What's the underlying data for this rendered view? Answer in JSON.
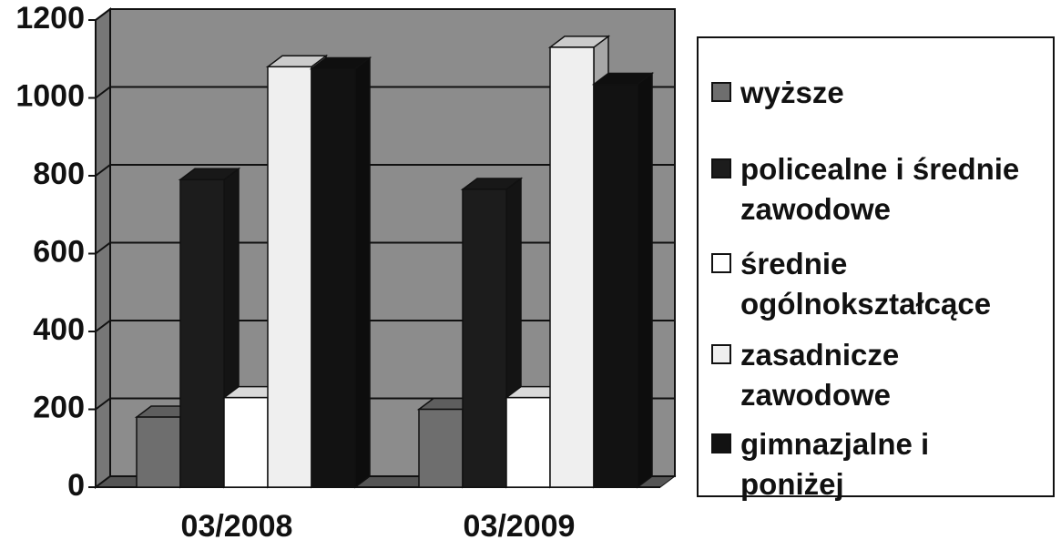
{
  "chart_data": {
    "type": "bar3d",
    "categories": [
      "03/2008",
      "03/2009"
    ],
    "series": [
      {
        "name": "wyższe",
        "color": "#6e6e6e",
        "values": [
          180,
          200
        ]
      },
      {
        "name": "policealne i średnie zawodowe",
        "color": "#1c1c1c",
        "values": [
          790,
          765
        ]
      },
      {
        "name": "średnie ogólnokształcące",
        "color": "#ffffff",
        "values": [
          230,
          230
        ]
      },
      {
        "name": "zasadnicze zawodowe",
        "color": "#efefef",
        "values": [
          1080,
          1130
        ]
      },
      {
        "name": "gimnazjalne i poniżej",
        "color": "#121212",
        "values": [
          1075,
          1035
        ]
      }
    ],
    "ylim": [
      0,
      1200
    ],
    "yticks": [
      0,
      200,
      400,
      600,
      800,
      1000,
      1200
    ],
    "grid": true
  }
}
